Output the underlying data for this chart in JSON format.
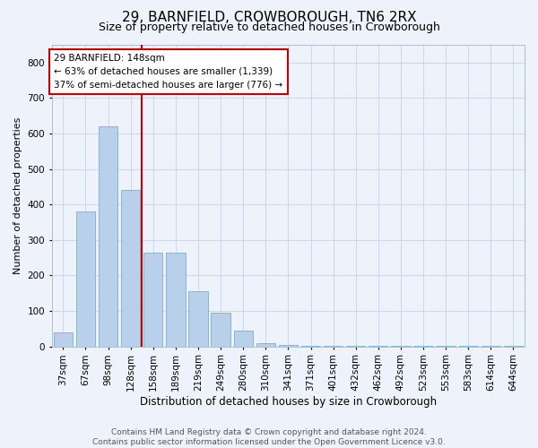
{
  "title": "29, BARNFIELD, CROWBOROUGH, TN6 2RX",
  "subtitle": "Size of property relative to detached houses in Crowborough",
  "xlabel": "Distribution of detached houses by size in Crowborough",
  "ylabel": "Number of detached properties",
  "categories": [
    "37sqm",
    "67sqm",
    "98sqm",
    "128sqm",
    "158sqm",
    "189sqm",
    "219sqm",
    "249sqm",
    "280sqm",
    "310sqm",
    "341sqm",
    "371sqm",
    "401sqm",
    "432sqm",
    "462sqm",
    "492sqm",
    "523sqm",
    "553sqm",
    "583sqm",
    "614sqm",
    "644sqm"
  ],
  "values": [
    40,
    380,
    620,
    440,
    265,
    265,
    155,
    95,
    45,
    10,
    4,
    2,
    1,
    1,
    1,
    1,
    1,
    1,
    1,
    1,
    1
  ],
  "bar_color": "#b8d0ea",
  "bar_edge_color": "#7aaed4",
  "background_color": "#eef3fb",
  "grid_color": "#c8d8ee",
  "marker_bin_index": 3,
  "marker_line_color": "#cc0000",
  "annotation_text": "29 BARNFIELD: 148sqm\n← 63% of detached houses are smaller (1,339)\n37% of semi-detached houses are larger (776) →",
  "annotation_box_color": "#ffffff",
  "annotation_box_edge": "#cc0000",
  "footer": "Contains HM Land Registry data © Crown copyright and database right 2024.\nContains public sector information licensed under the Open Government Licence v3.0.",
  "ylim": [
    0,
    850
  ],
  "yticks": [
    0,
    100,
    200,
    300,
    400,
    500,
    600,
    700,
    800
  ],
  "title_fontsize": 11,
  "subtitle_fontsize": 9,
  "xlabel_fontsize": 8.5,
  "ylabel_fontsize": 8,
  "tick_fontsize": 7.5,
  "annotation_fontsize": 7.5,
  "footer_fontsize": 6.5
}
